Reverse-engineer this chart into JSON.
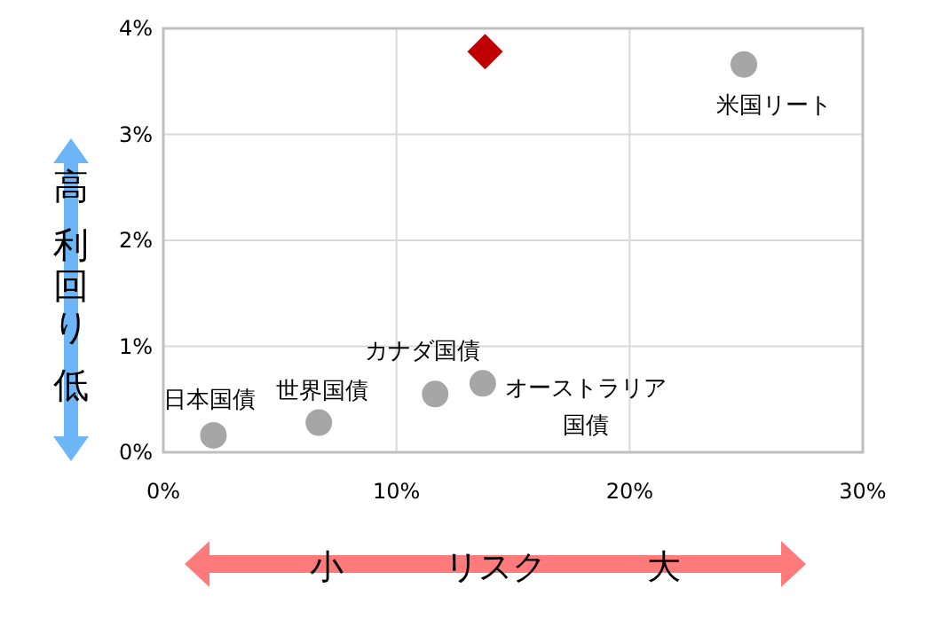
{
  "chart_data": {
    "type": "scatter",
    "xlabel": "小　　　リスク　　　大",
    "ylabel": "高利回り低",
    "series": [
      {
        "color": "#a6a6a6",
        "marker": "circle",
        "x": [
          2.15,
          6.67,
          11.66,
          13.7,
          24.9
        ],
        "values": [
          0.16,
          0.28,
          0.55,
          0.65,
          3.66
        ]
      },
      {
        "color": "#c00000",
        "marker": "diamond",
        "x": [
          13.8
        ],
        "values": [
          3.78
        ]
      }
    ],
    "annotations": [
      {
        "text": "日本国債",
        "x": 2.15,
        "y": 0.16
      },
      {
        "text": "世界国債",
        "x": 6.67,
        "y": 0.28
      },
      {
        "text": "カナダ国債",
        "x": 11.66,
        "y": 0.55
      },
      {
        "text": "オーストラリア国債",
        "x": 13.7,
        "y": 0.65
      },
      {
        "text": "米国リート",
        "x": 24.9,
        "y": 3.66
      }
    ],
    "xlim": [
      0,
      30
    ],
    "ylim": [
      0,
      4
    ],
    "xticks": [
      {
        "value": 0,
        "label": "0%"
      },
      {
        "value": 10,
        "label": "10%"
      },
      {
        "value": 20,
        "label": "20%"
      },
      {
        "value": 30,
        "label": "30%"
      }
    ],
    "yticks": [
      {
        "value": 0,
        "label": "0%"
      },
      {
        "value": 1,
        "label": "1%"
      },
      {
        "value": 2,
        "label": "2%"
      },
      {
        "value": 3,
        "label": "3%"
      },
      {
        "value": 4,
        "label": "4%"
      }
    ],
    "grid": true
  }
}
